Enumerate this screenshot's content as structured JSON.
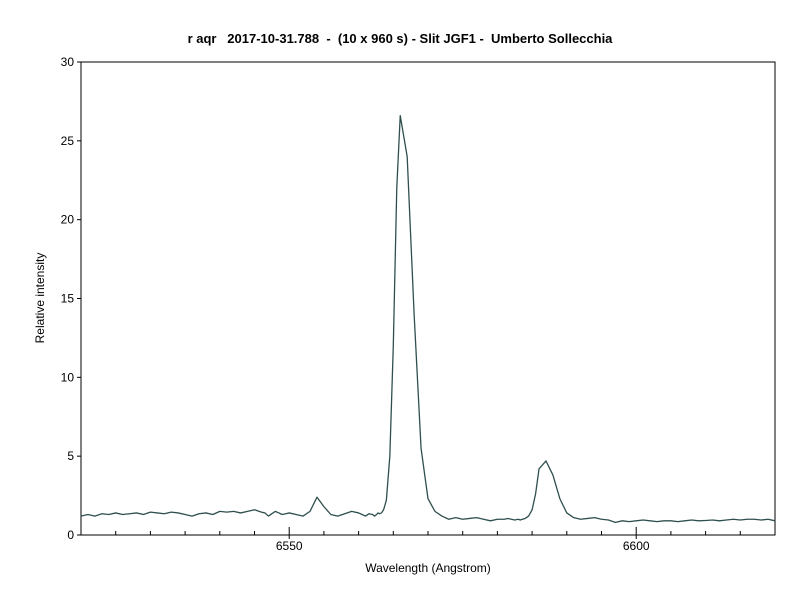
{
  "chart_data": {
    "type": "line",
    "title": "r aqr   2017-10-31.788  -  (10 x 960 s) - Slit JGF1 -  Umberto Sollecchia",
    "xlabel": "Wavelength (Angstrom)",
    "ylabel": "Relative intensity",
    "xlim": [
      6520,
      6620
    ],
    "ylim": [
      0,
      30
    ],
    "x_ticks": [
      6550,
      6600
    ],
    "x_tick_labels": [
      "6550",
      "6600"
    ],
    "x_minor_step": 5,
    "y_ticks": [
      0,
      5,
      10,
      15,
      20,
      25,
      30
    ],
    "y_tick_labels": [
      "0",
      "5",
      "10",
      "15",
      "20",
      "25",
      "30"
    ],
    "grid": false,
    "line_color": "#2f4f4f",
    "series": [
      {
        "x": [
          6520,
          6521,
          6522,
          6523,
          6524,
          6525,
          6526,
          6527,
          6528,
          6529,
          6530,
          6531,
          6532,
          6533,
          6534,
          6535,
          6536,
          6537,
          6538,
          6539,
          6540,
          6541,
          6542,
          6543,
          6544,
          6545,
          6546,
          6546.5,
          6547,
          6547.5,
          6548,
          6548.5,
          6549,
          6549.5,
          6550,
          6551,
          6552,
          6553,
          6554,
          6555,
          6556,
          6557,
          6558,
          6559,
          6560,
          6560.5,
          6561,
          6561.5,
          6562,
          6562.3,
          6562.6,
          6562.8,
          6563,
          6563.3,
          6563.6,
          6564,
          6564.5,
          6565,
          6565.5,
          6566,
          6567,
          6568,
          6569,
          6570,
          6571,
          6572,
          6573,
          6574,
          6575,
          6576,
          6577,
          6578,
          6579,
          6580,
          6581,
          6581.5,
          6582,
          6582.5,
          6583,
          6583.3,
          6583.6,
          6584,
          6584.5,
          6585,
          6585.5,
          6586,
          6587,
          6588,
          6589,
          6590,
          6591,
          6592,
          6593,
          6594,
          6595,
          6596,
          6597,
          6598,
          6599,
          6600,
          6601,
          6602,
          6603,
          6604,
          6605,
          6606,
          6607,
          6608,
          6609,
          6610,
          6611,
          6612,
          6613,
          6614,
          6615,
          6616,
          6617,
          6618,
          6619,
          6620
        ],
        "y": [
          1.2,
          1.3,
          1.2,
          1.35,
          1.3,
          1.4,
          1.3,
          1.35,
          1.4,
          1.3,
          1.45,
          1.4,
          1.35,
          1.45,
          1.4,
          1.3,
          1.2,
          1.35,
          1.4,
          1.3,
          1.5,
          1.45,
          1.5,
          1.4,
          1.5,
          1.6,
          1.45,
          1.4,
          1.2,
          1.35,
          1.5,
          1.4,
          1.3,
          1.35,
          1.4,
          1.3,
          1.2,
          1.5,
          2.4,
          1.8,
          1.3,
          1.2,
          1.35,
          1.5,
          1.4,
          1.3,
          1.2,
          1.35,
          1.3,
          1.2,
          1.3,
          1.4,
          1.35,
          1.4,
          1.6,
          2.2,
          5.0,
          12.0,
          22.0,
          26.6,
          24.0,
          14.0,
          5.5,
          2.3,
          1.5,
          1.2,
          1.0,
          1.1,
          1.0,
          1.05,
          1.1,
          1.0,
          0.9,
          1.0,
          1.0,
          1.05,
          1.0,
          0.95,
          1.0,
          0.95,
          1.0,
          1.05,
          1.2,
          1.6,
          2.6,
          4.2,
          4.7,
          3.8,
          2.3,
          1.4,
          1.1,
          1.0,
          1.05,
          1.1,
          1.0,
          0.95,
          0.8,
          0.9,
          0.85,
          0.9,
          0.95,
          0.9,
          0.85,
          0.9,
          0.9,
          0.85,
          0.9,
          0.95,
          0.9,
          0.92,
          0.95,
          0.9,
          0.95,
          1.0,
          0.95,
          1.0,
          1.0,
          0.95,
          1.0,
          0.9
        ]
      }
    ]
  }
}
